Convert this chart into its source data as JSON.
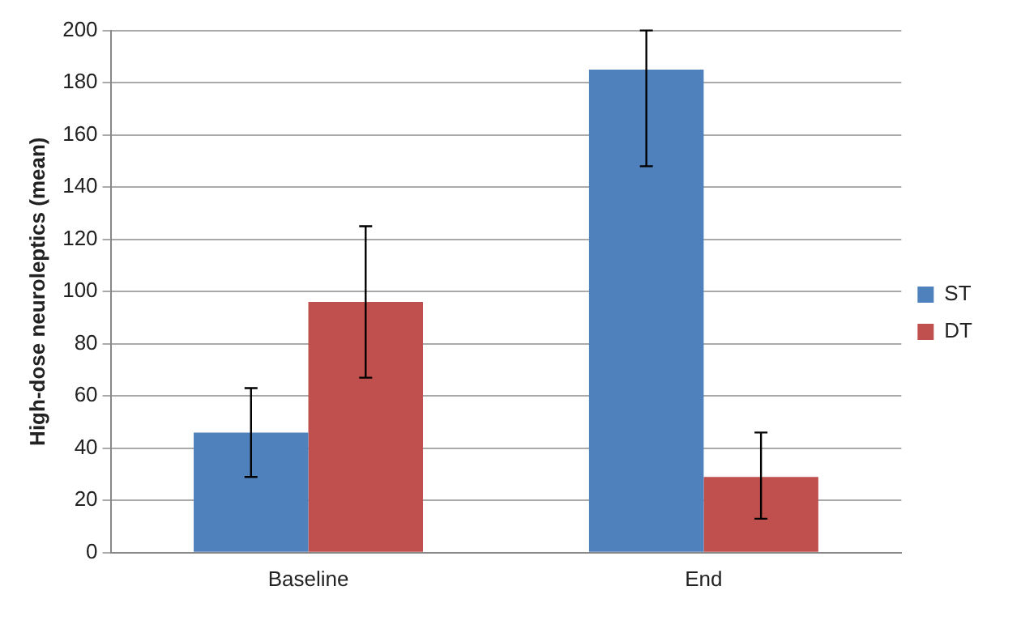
{
  "chart_data": {
    "type": "bar",
    "ylabel": "High-dose neuroleptics (mean)",
    "categories": [
      "Baseline",
      "End"
    ],
    "series": [
      {
        "name": "ST",
        "color": "#4f81bd",
        "values": [
          46,
          185
        ],
        "errors": [
          [
            29,
            63
          ],
          [
            148,
            200
          ]
        ]
      },
      {
        "name": "DT",
        "color": "#c0504d",
        "values": [
          96,
          29
        ],
        "errors": [
          [
            67,
            125
          ],
          [
            13,
            46
          ]
        ]
      }
    ],
    "ylim": [
      0,
      200
    ],
    "yticks": [
      0,
      20,
      40,
      60,
      80,
      100,
      120,
      140,
      160,
      180,
      200
    ],
    "grid": "y",
    "legend": "right"
  }
}
